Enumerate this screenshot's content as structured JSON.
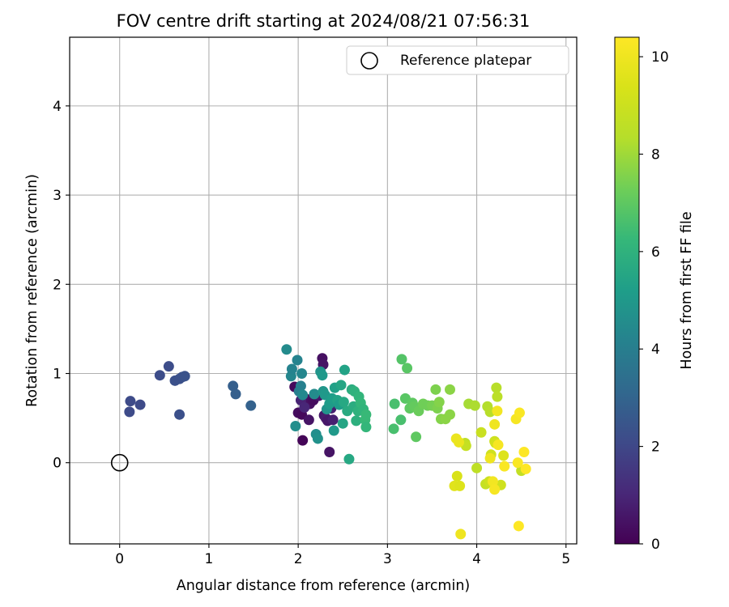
{
  "chart_data": {
    "type": "scatter",
    "title": "FOV centre drift starting at 2024/08/21 07:56:31",
    "xlabel": "Angular distance from reference (arcmin)",
    "ylabel": "Rotation from reference (arcmin)",
    "xlim": [
      -0.56,
      5.12
    ],
    "ylim": [
      -0.91,
      4.77
    ],
    "xticks": [
      "0",
      "1",
      "2",
      "3",
      "4",
      "5"
    ],
    "yticks": [
      "0",
      "1",
      "2",
      "3",
      "4"
    ],
    "grid": true,
    "legend": {
      "position": "top-right",
      "entries": [
        "Reference platepar"
      ]
    },
    "reference_point": {
      "x": 0,
      "y": 0,
      "label": "Reference platepar"
    },
    "colorbar": {
      "label": "Hours from first FF file",
      "colormap": "viridis",
      "range": [
        0,
        10.4
      ],
      "ticks": [
        "0",
        "2",
        "4",
        "6",
        "8",
        "10"
      ]
    },
    "points": [
      [
        0.12,
        0.69,
        2.1
      ],
      [
        0.11,
        0.57,
        2.1
      ],
      [
        0.23,
        0.65,
        2.1
      ],
      [
        0.45,
        0.98,
        2.2
      ],
      [
        0.55,
        1.08,
        2.2
      ],
      [
        0.62,
        0.92,
        2.3
      ],
      [
        0.67,
        0.94,
        2.3
      ],
      [
        0.7,
        0.96,
        2.3
      ],
      [
        0.73,
        0.97,
        2.4
      ],
      [
        0.67,
        0.54,
        2.3
      ],
      [
        1.27,
        0.86,
        2.8
      ],
      [
        1.3,
        0.77,
        2.8
      ],
      [
        1.47,
        0.64,
        2.9
      ],
      [
        1.96,
        0.85,
        0.2
      ],
      [
        2.0,
        0.56,
        0.3
      ],
      [
        2.04,
        0.54,
        0.2
      ],
      [
        2.05,
        0.25,
        0.1
      ],
      [
        2.1,
        0.71,
        0.4
      ],
      [
        2.12,
        0.48,
        0.5
      ],
      [
        2.13,
        0.66,
        0.4
      ],
      [
        2.17,
        0.7,
        0.3
      ],
      [
        2.23,
        0.75,
        0.6
      ],
      [
        2.27,
        1.17,
        0.4
      ],
      [
        2.28,
        1.1,
        0.5
      ],
      [
        2.29,
        0.53,
        0.6
      ],
      [
        2.31,
        0.5,
        0.7
      ],
      [
        2.33,
        0.47,
        0.6
      ],
      [
        2.35,
        0.12,
        0.5
      ],
      [
        2.37,
        0.61,
        0.8
      ],
      [
        2.39,
        0.48,
        0.8
      ],
      [
        2.03,
        0.7,
        0.9
      ],
      [
        2.07,
        0.62,
        1.0
      ],
      [
        1.87,
        1.27,
        4.5
      ],
      [
        1.92,
        0.97,
        4.3
      ],
      [
        1.93,
        1.05,
        4.2
      ],
      [
        1.97,
        0.41,
        4.6
      ],
      [
        1.99,
        1.15,
        4.2
      ],
      [
        2.01,
        0.8,
        4.0
      ],
      [
        2.03,
        0.86,
        4.1
      ],
      [
        2.04,
        1.0,
        4.3
      ],
      [
        2.05,
        0.76,
        4.4
      ],
      [
        2.18,
        0.77,
        4.5
      ],
      [
        2.2,
        0.32,
        4.6
      ],
      [
        2.22,
        0.27,
        4.7
      ],
      [
        2.25,
        1.02,
        4.8
      ],
      [
        2.27,
        0.98,
        5.0
      ],
      [
        2.28,
        0.8,
        4.9
      ],
      [
        2.3,
        0.76,
        5.0
      ],
      [
        2.32,
        0.6,
        4.8
      ],
      [
        2.35,
        0.66,
        5.1
      ],
      [
        2.38,
        0.72,
        5.2
      ],
      [
        2.4,
        0.36,
        5.0
      ],
      [
        2.41,
        0.84,
        5.3
      ],
      [
        2.44,
        0.7,
        5.4
      ],
      [
        2.46,
        0.65,
        5.2
      ],
      [
        2.48,
        0.87,
        5.5
      ],
      [
        2.5,
        0.44,
        5.5
      ],
      [
        2.51,
        0.68,
        5.6
      ],
      [
        2.52,
        1.04,
        5.4
      ],
      [
        2.55,
        0.58,
        5.7
      ],
      [
        2.57,
        0.04,
        5.6
      ],
      [
        2.6,
        0.82,
        5.8
      ],
      [
        2.62,
        0.63,
        5.8
      ],
      [
        2.63,
        0.8,
        6.0
      ],
      [
        2.65,
        0.47,
        5.9
      ],
      [
        2.67,
        0.58,
        6.0
      ],
      [
        2.68,
        0.74,
        6.1
      ],
      [
        2.7,
        0.67,
        6.2
      ],
      [
        2.73,
        0.6,
        6.1
      ],
      [
        2.75,
        0.48,
        6.3
      ],
      [
        2.76,
        0.4,
        6.2
      ],
      [
        2.76,
        0.54,
        6.3
      ],
      [
        3.08,
        0.66,
        6.6
      ],
      [
        3.07,
        0.38,
        6.6
      ],
      [
        3.15,
        0.48,
        6.6
      ],
      [
        3.16,
        1.16,
        6.8
      ],
      [
        3.2,
        0.72,
        6.9
      ],
      [
        3.22,
        1.06,
        6.9
      ],
      [
        3.25,
        0.61,
        7.0
      ],
      [
        3.28,
        0.67,
        7.0
      ],
      [
        3.3,
        0.63,
        7.1
      ],
      [
        3.32,
        0.29,
        7.0
      ],
      [
        3.35,
        0.58,
        7.2
      ],
      [
        3.4,
        0.66,
        7.3
      ],
      [
        3.45,
        0.64,
        7.3
      ],
      [
        3.5,
        0.64,
        7.4
      ],
      [
        3.54,
        0.82,
        7.5
      ],
      [
        3.56,
        0.61,
        7.5
      ],
      [
        3.58,
        0.68,
        7.6
      ],
      [
        3.6,
        0.49,
        7.6
      ],
      [
        3.65,
        0.49,
        7.7
      ],
      [
        3.7,
        0.54,
        7.7
      ],
      [
        3.7,
        0.82,
        7.7
      ],
      [
        3.87,
        0.22,
        8.6
      ],
      [
        3.88,
        0.19,
        8.8
      ],
      [
        3.91,
        0.66,
        8.1
      ],
      [
        3.98,
        0.64,
        8.2
      ],
      [
        4.12,
        0.63,
        8.3
      ],
      [
        4.15,
        0.57,
        8.4
      ],
      [
        4.22,
        0.84,
        8.4
      ],
      [
        4.23,
        0.74,
        8.5
      ],
      [
        4.05,
        0.34,
        8.9
      ],
      [
        4.0,
        -0.06,
        8.6
      ],
      [
        4.1,
        -0.24,
        8.8
      ],
      [
        4.14,
        -0.21,
        9.0
      ],
      [
        4.16,
        0.09,
        9.1
      ],
      [
        4.2,
        0.24,
        9.0
      ],
      [
        4.21,
        0.22,
        9.2
      ],
      [
        4.27,
        -0.25,
        9.1
      ],
      [
        4.3,
        0.08,
        9.5
      ],
      [
        4.5,
        -0.09,
        8.7
      ],
      [
        3.78,
        -0.15,
        9.4
      ],
      [
        3.77,
        0.27,
        9.9
      ],
      [
        3.8,
        0.23,
        9.9
      ],
      [
        3.75,
        -0.26,
        9.6
      ],
      [
        3.81,
        -0.26,
        9.5
      ],
      [
        3.82,
        -0.8,
        10.0
      ],
      [
        4.15,
        0.05,
        10.0
      ],
      [
        4.18,
        -0.21,
        10.1
      ],
      [
        4.2,
        -0.3,
        10.2
      ],
      [
        4.2,
        0.43,
        10.0
      ],
      [
        4.23,
        0.58,
        10.1
      ],
      [
        4.24,
        0.2,
        10.2
      ],
      [
        4.31,
        -0.04,
        10.3
      ],
      [
        4.44,
        0.49,
        10.2
      ],
      [
        4.46,
        0.0,
        10.3
      ],
      [
        4.48,
        0.56,
        10.3
      ],
      [
        4.47,
        -0.71,
        10.4
      ],
      [
        4.53,
        0.12,
        10.4
      ],
      [
        4.55,
        -0.07,
        10.4
      ]
    ]
  }
}
